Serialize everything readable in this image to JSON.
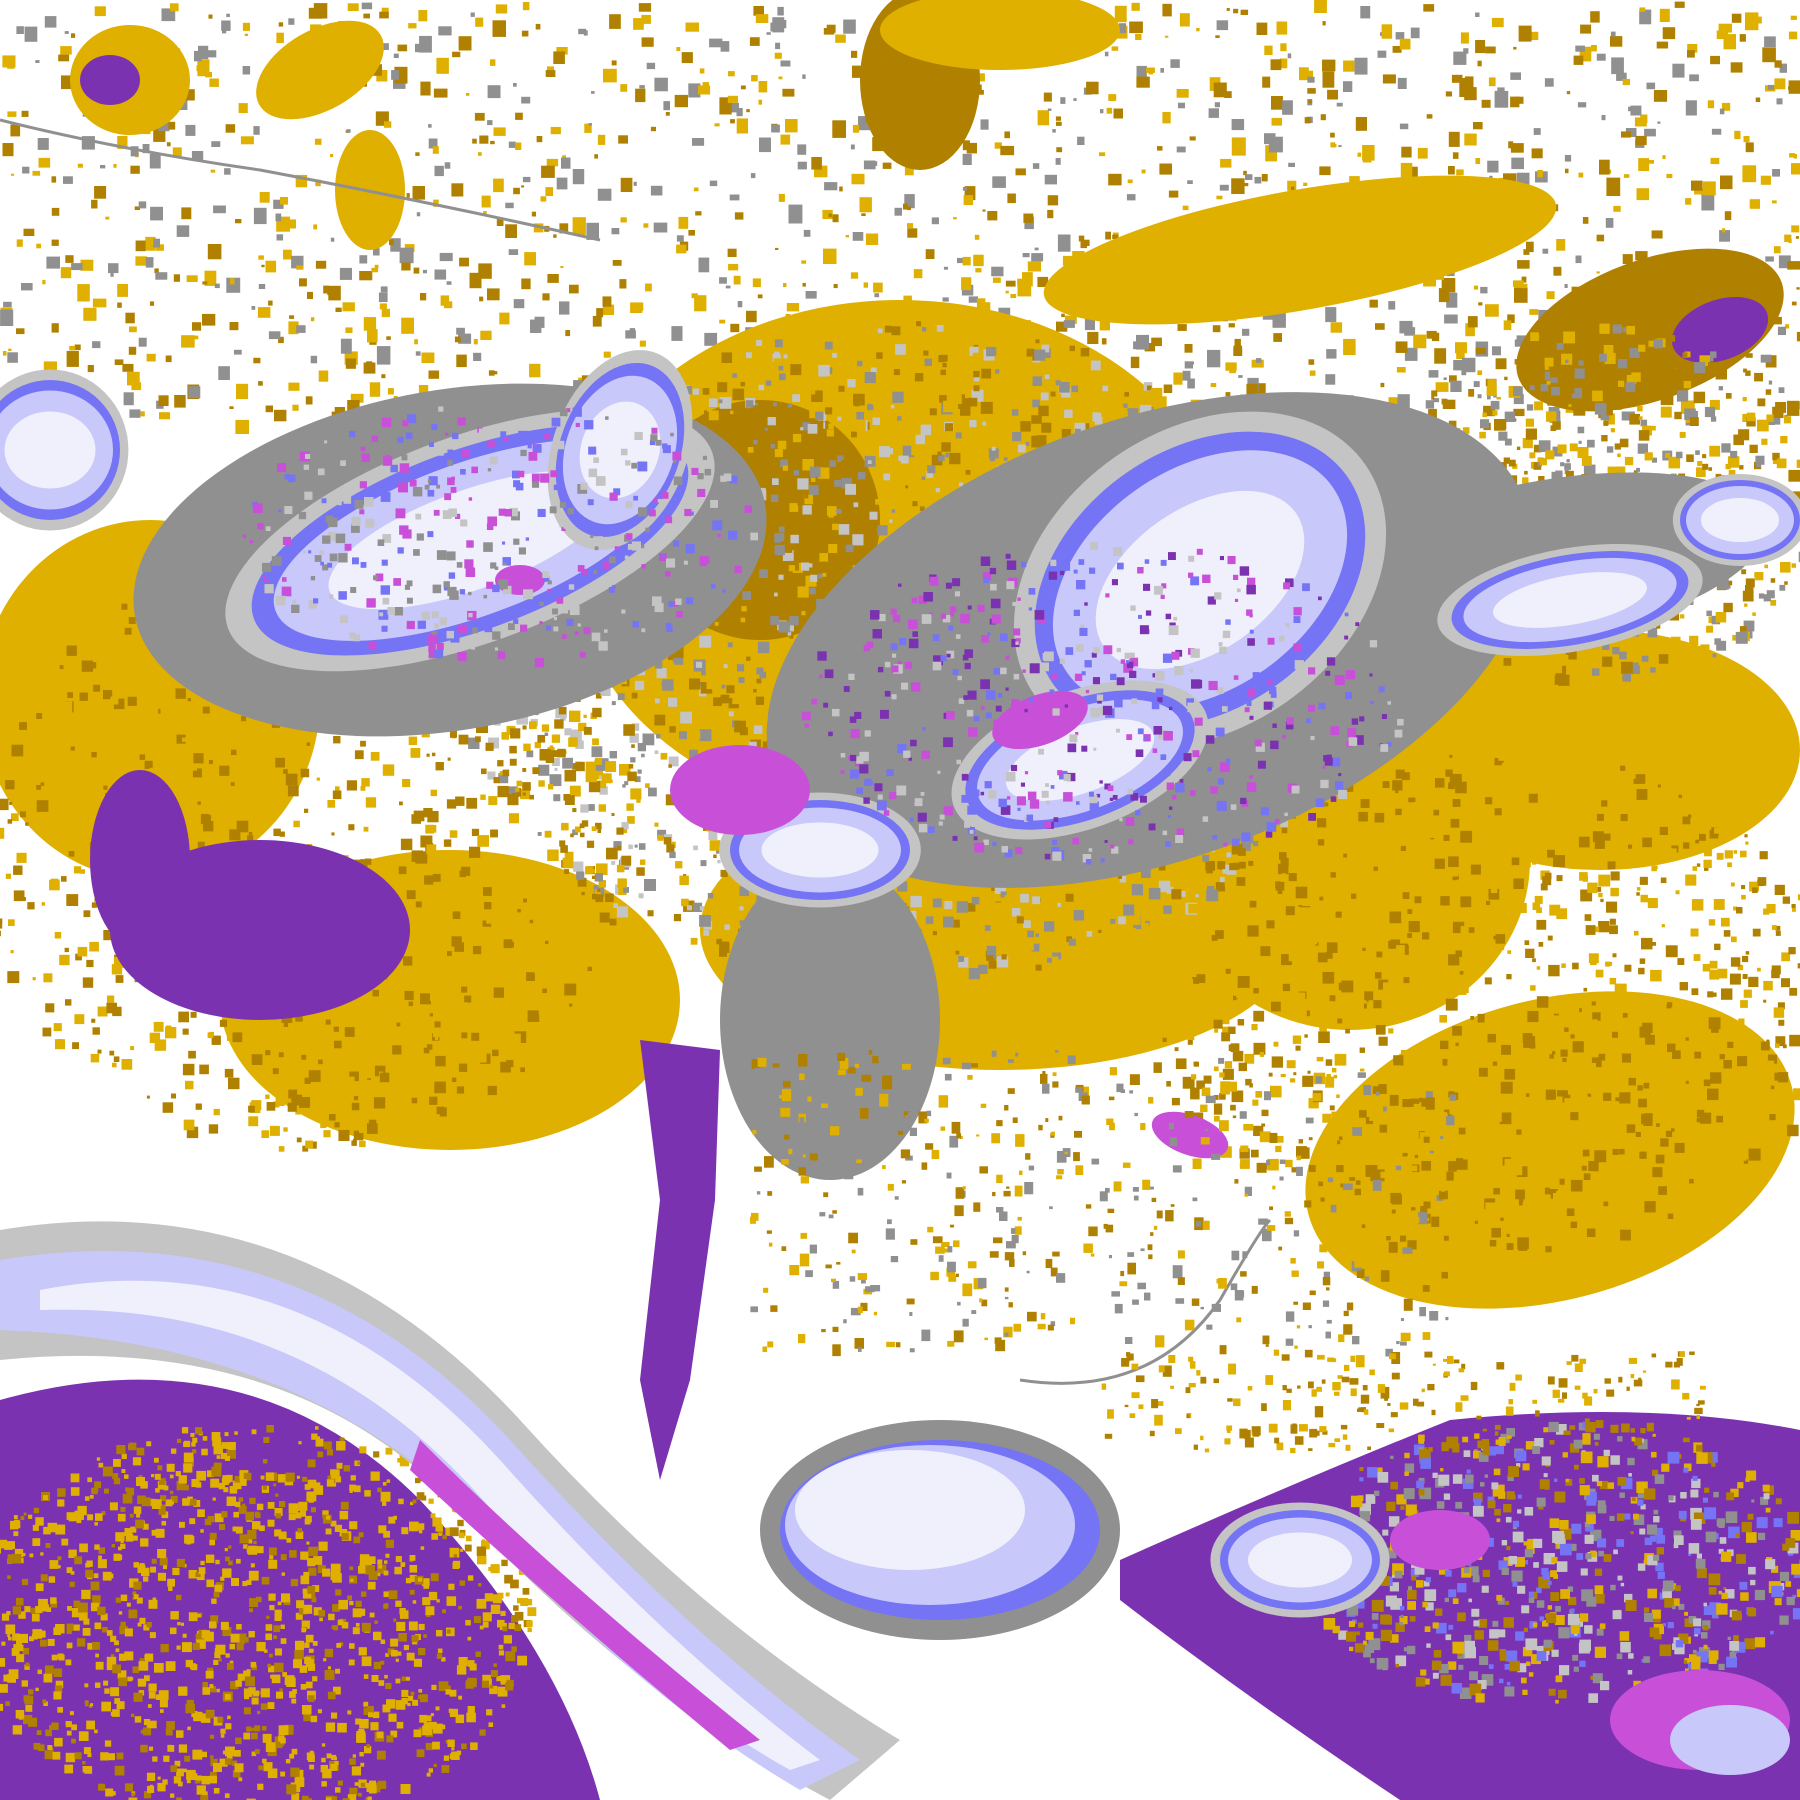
{
  "map": {
    "kind": "classified raster",
    "palette": {
      "background": "#ffffff",
      "gold": "#dfb000",
      "dark_gold": "#b08000",
      "gray": "#909090",
      "light_gray": "#c4c4c4",
      "purple": "#7b32b0",
      "magenta": "#c850d8",
      "blue": "#7474f4",
      "lavender": "#c8c8fa",
      "pale": "#f0f0fc"
    }
  }
}
